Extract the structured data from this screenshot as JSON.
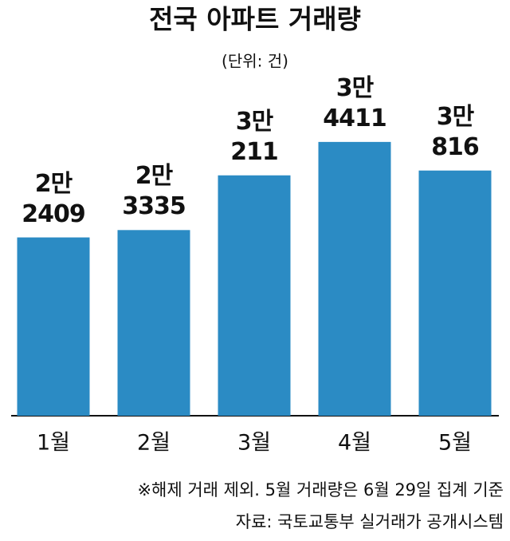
{
  "chart_data": {
    "type": "bar",
    "title": "전국 아파트 거래량",
    "subtitle": "(단위: 건)",
    "categories": [
      "1월",
      "2월",
      "3월",
      "4월",
      "5월"
    ],
    "values": [
      22409,
      23335,
      30211,
      34411,
      30816
    ],
    "value_labels": [
      "2만\n2409",
      "2만\n3335",
      "3만\n211",
      "3만\n4411",
      "3만\n816"
    ],
    "color": "#2b8bc4",
    "ylim": [
      0,
      35000
    ],
    "notes": [
      "※해제 거래 제외. 5월 거래량은 6월 29일 집계 기준",
      "자료: 국토교통부 실거래가 공개시스템"
    ]
  }
}
